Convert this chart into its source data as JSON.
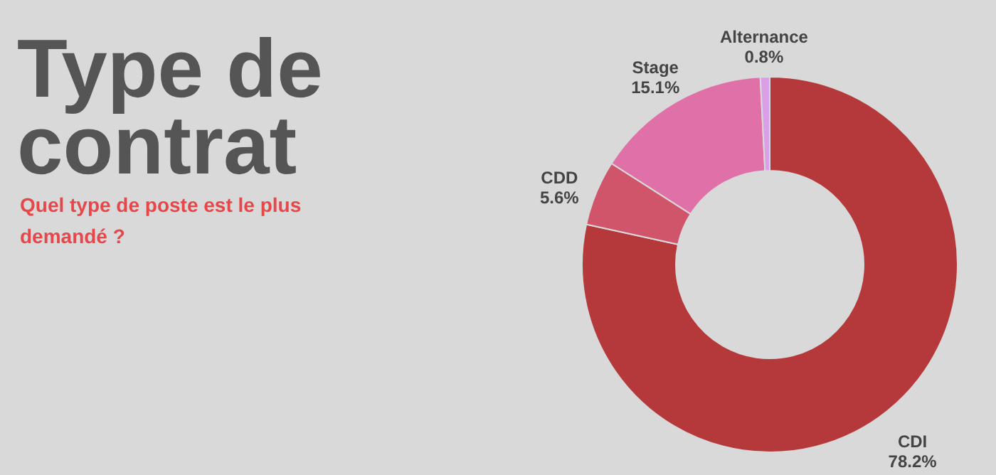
{
  "chart_data": {
    "type": "donut",
    "title": "Type de contrat",
    "subtitle": "Quel type de poste est le plus demandé ?",
    "categories": [
      "CDI",
      "CDD",
      "Stage",
      "Alternance"
    ],
    "values": [
      78.2,
      5.6,
      15.1,
      0.8
    ],
    "colors": [
      "#b5393a",
      "#d0556a",
      "#e070a8",
      "#d9a0e8"
    ],
    "value_labels": [
      "78.2%",
      "5.6%",
      "15.1%",
      "0.8%"
    ]
  }
}
